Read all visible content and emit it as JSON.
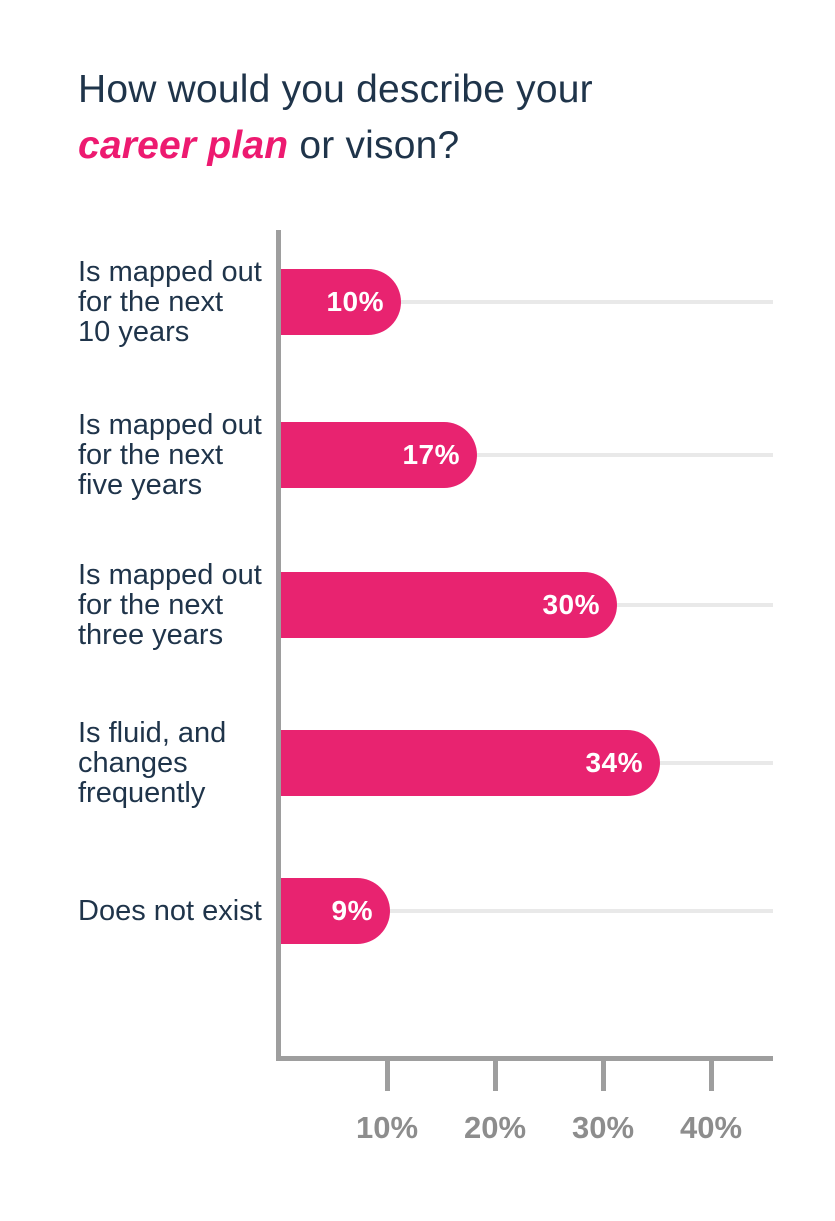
{
  "title": {
    "line1": "How would you describe your",
    "line2_highlight": "career plan",
    "line2_rest": " or vison?"
  },
  "colors": {
    "navy_text": "#1f344a",
    "title_pink": "#ed1a70",
    "bar_pink": "#e82370",
    "axis_gray": "#9e9e9e",
    "tick_label_gray": "#8d8d8d",
    "gridline_gray": "#e9e9e9",
    "bar_value_text": "#ffffff",
    "background": "#ffffff"
  },
  "chart_data": {
    "type": "bar",
    "orientation": "horizontal",
    "title": "How would you describe your career plan or vison?",
    "categories": [
      "Is mapped out for the next 10 years",
      "Is mapped out for the next five years",
      "Is mapped out for the next three years",
      "Is fluid, and changes frequently",
      "Does not exist"
    ],
    "category_line_breaks": [
      [
        "Is mapped out",
        "for the next",
        "10 years"
      ],
      [
        "Is mapped out",
        "for the next",
        "five years"
      ],
      [
        "Is mapped out",
        "for the next",
        "three years"
      ],
      [
        "Is fluid, and",
        "changes",
        "frequently"
      ],
      [
        "Does not exist"
      ]
    ],
    "values": [
      10,
      17,
      30,
      34,
      9
    ],
    "value_labels": [
      "10%",
      "17%",
      "30%",
      "34%",
      "9%"
    ],
    "value_label_position": "inside-end",
    "x_tick_values": [
      10,
      20,
      30,
      40
    ],
    "x_tick_labels": [
      "10%",
      "20%",
      "30%",
      "40%"
    ],
    "xlim": [
      0,
      45.5
    ],
    "xlabel": "",
    "ylabel": "",
    "grid": "light horizontal line per category row",
    "legend": "none"
  }
}
